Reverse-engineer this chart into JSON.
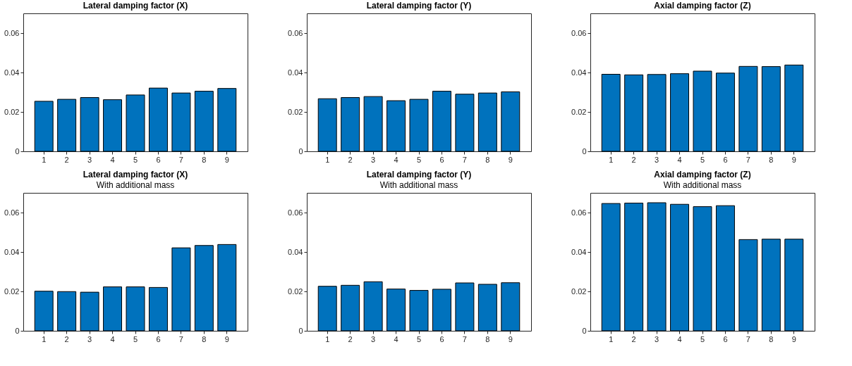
{
  "chart_data": [
    {
      "type": "bar",
      "title": "Lateral damping factor (X)",
      "categories": [
        "1",
        "2",
        "3",
        "4",
        "5",
        "6",
        "7",
        "8",
        "9"
      ],
      "values": [
        0.0254,
        0.0264,
        0.0273,
        0.0262,
        0.0286,
        0.0321,
        0.0296,
        0.0305,
        0.0319
      ],
      "color": "#0072bd",
      "ylim": [
        0,
        0.07
      ],
      "yticks": [
        0,
        0.02,
        0.04,
        0.06
      ]
    },
    {
      "type": "bar",
      "title": "Lateral damping factor (Y)",
      "categories": [
        "1",
        "2",
        "3",
        "4",
        "5",
        "6",
        "7",
        "8",
        "9"
      ],
      "values": [
        0.0267,
        0.0273,
        0.0278,
        0.0257,
        0.0264,
        0.0305,
        0.029,
        0.0296,
        0.0302
      ],
      "color": "#0072bd",
      "ylim": [
        0,
        0.07
      ],
      "yticks": [
        0,
        0.02,
        0.04,
        0.06
      ]
    },
    {
      "type": "bar",
      "title": "Axial damping factor (Z)",
      "categories": [
        "1",
        "2",
        "3",
        "4",
        "5",
        "6",
        "7",
        "8",
        "9"
      ],
      "values": [
        0.0391,
        0.0388,
        0.039,
        0.0394,
        0.0407,
        0.0397,
        0.0431,
        0.043,
        0.0438
      ],
      "color": "#0072bd",
      "ylim": [
        0,
        0.07
      ],
      "yticks": [
        0,
        0.02,
        0.04,
        0.06
      ]
    },
    {
      "type": "bar",
      "title": "Lateral damping factor (X)",
      "subtitle": "With additional mass",
      "categories": [
        "1",
        "2",
        "3",
        "4",
        "5",
        "6",
        "7",
        "8",
        "9"
      ],
      "values": [
        0.0201,
        0.0199,
        0.0196,
        0.0223,
        0.0223,
        0.022,
        0.0421,
        0.0433,
        0.0438
      ],
      "color": "#0072bd",
      "ylim": [
        0,
        0.07
      ],
      "yticks": [
        0,
        0.02,
        0.04,
        0.06
      ]
    },
    {
      "type": "bar",
      "title": "Lateral damping factor (Y)",
      "subtitle": "With additional mass",
      "categories": [
        "1",
        "2",
        "3",
        "4",
        "5",
        "6",
        "7",
        "8",
        "9"
      ],
      "values": [
        0.0226,
        0.0231,
        0.0249,
        0.0212,
        0.0205,
        0.0211,
        0.0243,
        0.0236,
        0.0244
      ],
      "color": "#0072bd",
      "ylim": [
        0,
        0.07
      ],
      "yticks": [
        0,
        0.02,
        0.04,
        0.06
      ]
    },
    {
      "type": "bar",
      "title": "Axial damping factor (Z)",
      "subtitle": "With additional mass",
      "categories": [
        "1",
        "2",
        "3",
        "4",
        "5",
        "6",
        "7",
        "8",
        "9"
      ],
      "values": [
        0.0646,
        0.0648,
        0.065,
        0.0642,
        0.063,
        0.0635,
        0.0463,
        0.0465,
        0.0465
      ],
      "color": "#0072bd",
      "ylim": [
        0,
        0.07
      ],
      "yticks": [
        0,
        0.02,
        0.04,
        0.06
      ]
    }
  ]
}
